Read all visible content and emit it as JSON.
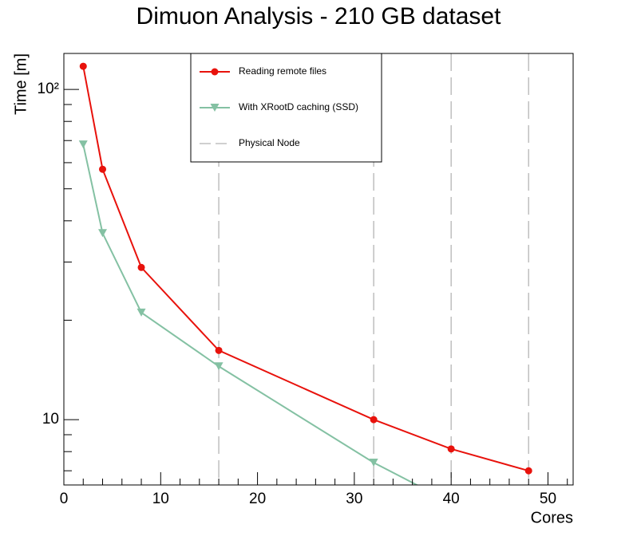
{
  "chart_data": {
    "type": "line",
    "title": "Dimuon Analysis - 210 GB dataset",
    "x_label": "Cores",
    "y_label": "Time [m]",
    "log_y": true,
    "xlim": [
      0,
      52.6
    ],
    "ylim": [
      6.34,
      128.5
    ],
    "xticks": [
      0,
      10,
      20,
      30,
      40,
      50
    ],
    "xminor_ticks": [
      2,
      4,
      6,
      8,
      12,
      14,
      16,
      18,
      22,
      24,
      26,
      28,
      32,
      34,
      36,
      38,
      42,
      44,
      46,
      48,
      52
    ],
    "yticks": [
      10,
      {
        "value": 100,
        "label": "10²"
      }
    ],
    "yminor_ticks": [
      7,
      8,
      9,
      20,
      30,
      40,
      50,
      60,
      70,
      80,
      90
    ],
    "series": [
      {
        "name": "Reading remote files",
        "color": "#e8120c",
        "marker": "circle",
        "x": [
          2,
          4,
          8,
          16,
          32,
          40,
          48
        ],
        "values": [
          117.5,
          57.3,
          28.9,
          16.2,
          10,
          8.15,
          7.0
        ]
      },
      {
        "name": "With XRootD caching (SSD)",
        "color": "#84c1a3",
        "marker": "triangle",
        "x": [
          2,
          4,
          8,
          16,
          32,
          40
        ],
        "values": [
          68.1,
          36.7,
          21.1,
          14.5,
          7.41,
          5.6
        ]
      }
    ],
    "reference_lines": {
      "name": "Physical Node",
      "color": "#b5b5b5",
      "x": [
        16,
        32,
        40,
        48
      ]
    }
  }
}
